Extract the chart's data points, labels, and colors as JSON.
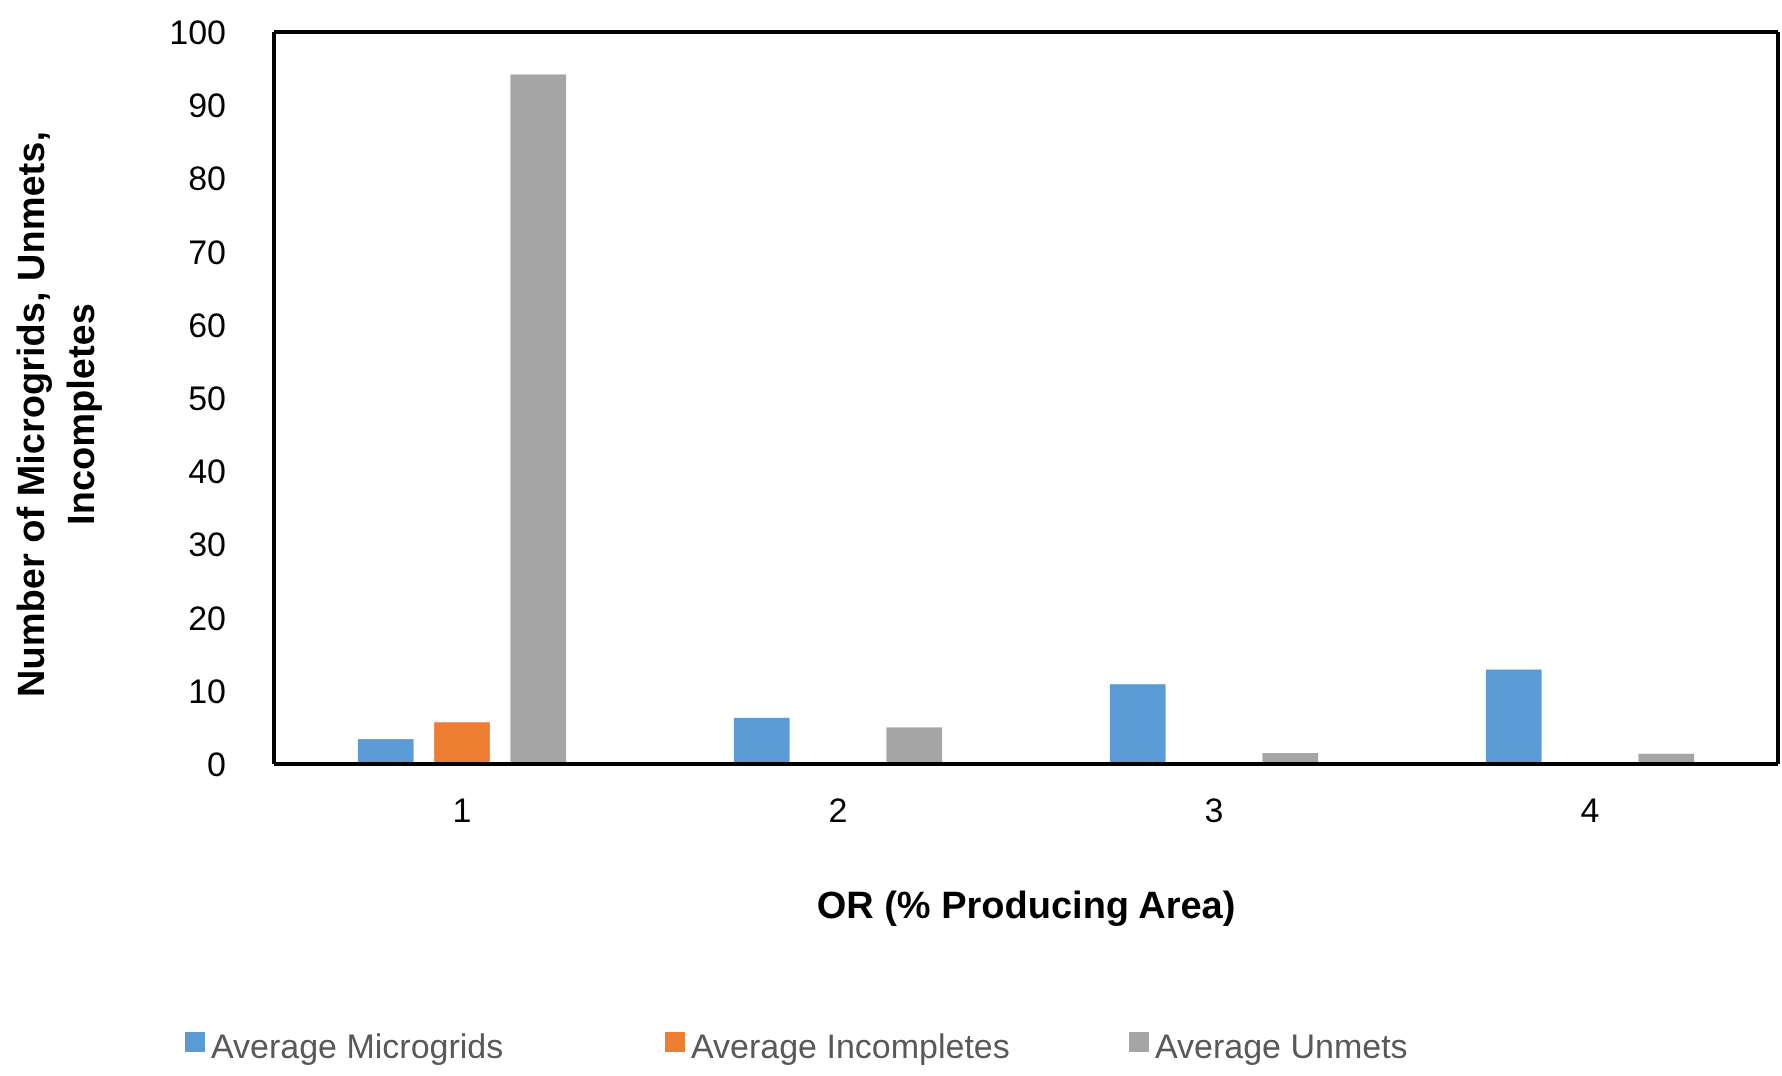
{
  "chart_data": {
    "type": "bar",
    "xlabel": "OR (% Producing Area)",
    "ylabel": "Number of Microgrids, Unmets, Incompletes",
    "categories": [
      "1",
      "2",
      "3",
      "4"
    ],
    "series": [
      {
        "name": "Average Microgrids",
        "color": "#5b9bd5",
        "values": [
          3.4,
          6.3,
          10.9,
          12.9
        ]
      },
      {
        "name": "Average Incompletes",
        "color": "#ed7d31",
        "values": [
          5.7,
          null,
          null,
          null
        ]
      },
      {
        "name": "Average Unmets",
        "color": "#a5a5a5",
        "values": [
          94.2,
          5.0,
          1.5,
          1.4
        ]
      }
    ],
    "ylim": [
      0,
      100
    ],
    "yticks": [
      0,
      10,
      20,
      30,
      40,
      50,
      60,
      70,
      80,
      90,
      100
    ],
    "grid": false,
    "legend": "bottom"
  }
}
